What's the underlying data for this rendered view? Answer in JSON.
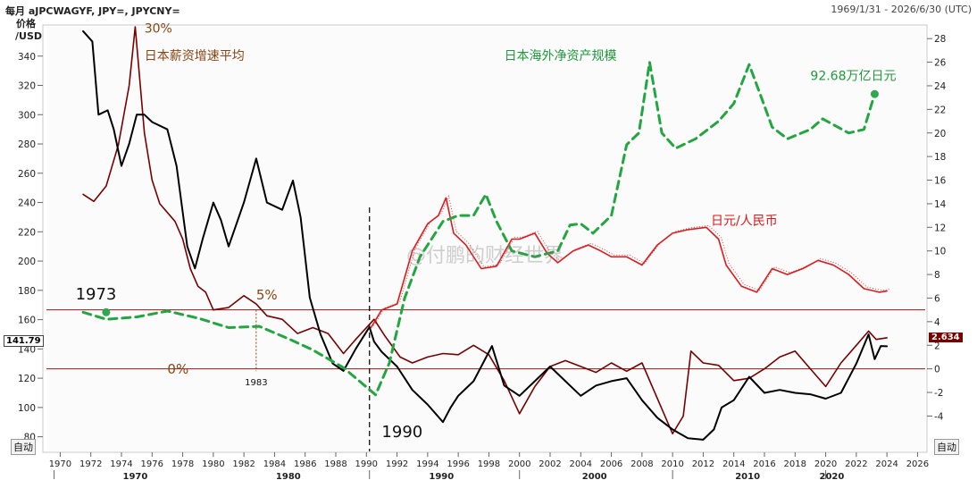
{
  "header": {
    "left": "每月 aJPCWAGYF, JPY=, JPYCNY=",
    "right": "1969/1/31 - 2026/6/30 (UTC)"
  },
  "left_axis": {
    "title_line1": "价格",
    "title_line2": "/USD"
  },
  "auto_left": "自动",
  "auto_right": "自动",
  "last_price_left": "141.79",
  "last_price_right": "2.634",
  "watermark": "@付鹏的财经世界",
  "colors": {
    "yen_usd": "#000000",
    "wage": "#7a0000",
    "nfa": "#22a63f",
    "yen_cny": "#e01a1a",
    "ref_line": "#8b1a1a",
    "anno_brown": "#8b4513"
  },
  "chart_data": {
    "type": "line",
    "x_range": [
      1969.1,
      2026.5
    ],
    "xticks": [
      1970,
      1972,
      1974,
      1976,
      1978,
      1980,
      1982,
      1984,
      1986,
      1988,
      1990,
      1992,
      1994,
      1996,
      1998,
      2000,
      2002,
      2004,
      2006,
      2008,
      2010,
      2012,
      2014,
      2016,
      2018,
      2020,
      2022,
      2024,
      2026
    ],
    "decades": [
      {
        "label": "1970",
        "x": 1974.9
      },
      {
        "label": "1980",
        "x": 1984.9
      },
      {
        "label": "1990",
        "x": 1994.9
      },
      {
        "label": "2000",
        "x": 2004.9
      },
      {
        "label": "2010",
        "x": 2014.9
      },
      {
        "label": "2020",
        "x": 2020.4
      }
    ],
    "y_left": {
      "range": [
        70,
        360
      ],
      "ticks": [
        80,
        100,
        120,
        140,
        160,
        180,
        200,
        220,
        240,
        260,
        280,
        300,
        320,
        340
      ]
    },
    "y_right": {
      "range": [
        -7,
        29
      ],
      "ticks": [
        -4,
        -2,
        0,
        2,
        4,
        6,
        8,
        10,
        12,
        14,
        16,
        18,
        20,
        22,
        24,
        26,
        28
      ]
    },
    "series": [
      {
        "name": "",
        "axis": "left",
        "style": "solid",
        "points": [
          [
            1971.5,
            357
          ],
          [
            1972.1,
            350
          ],
          [
            1972.5,
            300
          ],
          [
            1973.1,
            303
          ],
          [
            1973.5,
            290
          ],
          [
            1974.0,
            265
          ],
          [
            1974.5,
            280
          ],
          [
            1975.0,
            300
          ],
          [
            1975.5,
            300
          ],
          [
            1976.0,
            295
          ],
          [
            1977.0,
            290
          ],
          [
            1977.6,
            265
          ],
          [
            1978.3,
            210
          ],
          [
            1978.8,
            195
          ],
          [
            1979.3,
            215
          ],
          [
            1980.0,
            240
          ],
          [
            1980.5,
            228
          ],
          [
            1981.0,
            210
          ],
          [
            1982.0,
            240
          ],
          [
            1982.8,
            270
          ],
          [
            1983.5,
            240
          ],
          [
            1984.5,
            235
          ],
          [
            1985.2,
            255
          ],
          [
            1985.7,
            230
          ],
          [
            1986.3,
            175
          ],
          [
            1987.0,
            150
          ],
          [
            1987.8,
            130
          ],
          [
            1988.5,
            125
          ],
          [
            1989.3,
            140
          ],
          [
            1990.2,
            155
          ],
          [
            1990.5,
            145
          ],
          [
            1991.0,
            138
          ],
          [
            1992.0,
            128
          ],
          [
            1993.0,
            112
          ],
          [
            1994.0,
            102
          ],
          [
            1995.0,
            90
          ],
          [
            1995.5,
            100
          ],
          [
            1996.0,
            108
          ],
          [
            1997.0,
            118
          ],
          [
            1998.2,
            142
          ],
          [
            1999.0,
            115
          ],
          [
            2000.0,
            108
          ],
          [
            2001.2,
            120
          ],
          [
            2002.0,
            128
          ],
          [
            2003.0,
            118
          ],
          [
            2004.0,
            108
          ],
          [
            2005.0,
            115
          ],
          [
            2006.0,
            118
          ],
          [
            2007.0,
            120
          ],
          [
            2008.0,
            105
          ],
          [
            2009.0,
            93
          ],
          [
            2010.0,
            85
          ],
          [
            2011.0,
            79
          ],
          [
            2012.0,
            78
          ],
          [
            2012.7,
            85
          ],
          [
            2013.2,
            100
          ],
          [
            2014.0,
            105
          ],
          [
            2015.0,
            121
          ],
          [
            2016.0,
            110
          ],
          [
            2017.0,
            112
          ],
          [
            2018.0,
            110
          ],
          [
            2019.0,
            109
          ],
          [
            2020.0,
            106
          ],
          [
            2021.0,
            110
          ],
          [
            2022.0,
            130
          ],
          [
            2022.8,
            150
          ],
          [
            2023.2,
            133
          ],
          [
            2023.6,
            142
          ],
          [
            2024.0,
            141.8
          ]
        ]
      },
      {
        "name": "",
        "axis": "right",
        "style": "solid",
        "points": [
          [
            1971.5,
            14.8
          ],
          [
            1972.2,
            14.2
          ],
          [
            1973.0,
            15.5
          ],
          [
            1973.8,
            19
          ],
          [
            1974.5,
            24
          ],
          [
            1974.9,
            29
          ],
          [
            1975.5,
            20
          ],
          [
            1976.0,
            16
          ],
          [
            1976.5,
            14
          ],
          [
            1977.5,
            12.5
          ],
          [
            1978.0,
            11
          ],
          [
            1978.5,
            8.5
          ],
          [
            1979.0,
            7
          ],
          [
            1979.5,
            6.5
          ],
          [
            1980.0,
            5
          ],
          [
            1981.0,
            5.2
          ],
          [
            1982.0,
            6.2
          ],
          [
            1982.8,
            5.5
          ],
          [
            1983.5,
            4.5
          ],
          [
            1984.5,
            4.2
          ],
          [
            1985.5,
            3.0
          ],
          [
            1986.5,
            3.5
          ],
          [
            1987.5,
            3.0
          ],
          [
            1988.5,
            1.3
          ],
          [
            1989.3,
            2.5
          ],
          [
            1990.5,
            4.2
          ],
          [
            1991.2,
            2.8
          ],
          [
            1992.2,
            1.0
          ],
          [
            1993.0,
            0.5
          ],
          [
            1994.0,
            1.0
          ],
          [
            1995.0,
            1.3
          ],
          [
            1996.0,
            1.2
          ],
          [
            1997.0,
            2.0
          ],
          [
            1998.0,
            1.2
          ],
          [
            1999.0,
            -1.0
          ],
          [
            2000.0,
            -3.8
          ],
          [
            2001.0,
            -1.5
          ],
          [
            2002.0,
            0.2
          ],
          [
            2003.0,
            0.7
          ],
          [
            2004.0,
            0.2
          ],
          [
            2005.0,
            -0.3
          ],
          [
            2006.0,
            0.5
          ],
          [
            2007.0,
            -0.2
          ],
          [
            2008.0,
            0.5
          ],
          [
            2009.0,
            -2.5
          ],
          [
            2010.0,
            -5.5
          ],
          [
            2010.7,
            -4.0
          ],
          [
            2011.2,
            1.5
          ],
          [
            2012.0,
            0.5
          ],
          [
            2013.0,
            0.3
          ],
          [
            2014.0,
            -1.0
          ],
          [
            2015.0,
            -0.8
          ],
          [
            2016.0,
            0.0
          ],
          [
            2017.0,
            1.0
          ],
          [
            2018.0,
            1.5
          ],
          [
            2019.0,
            0.0
          ],
          [
            2020.0,
            -1.5
          ],
          [
            2021.0,
            0.5
          ],
          [
            2022.0,
            2.0
          ],
          [
            2022.8,
            3.2
          ],
          [
            2023.3,
            2.5
          ],
          [
            2024.0,
            2.634
          ]
        ]
      },
      {
        "name": "",
        "axis": "right",
        "style": "dashed",
        "points": [
          [
            1971.5,
            4.8
          ],
          [
            1973.0,
            4.2
          ],
          [
            1975.0,
            4.4
          ],
          [
            1977.0,
            4.9
          ],
          [
            1979.0,
            4.3
          ],
          [
            1981.0,
            3.5
          ],
          [
            1983.0,
            3.6
          ],
          [
            1985.0,
            2.5
          ],
          [
            1986.5,
            1.6
          ],
          [
            1988.5,
            0.1
          ],
          [
            1990.6,
            -2.2
          ],
          [
            1991.5,
            0.5
          ],
          [
            1992.5,
            6.0
          ],
          [
            1993.5,
            9.5
          ],
          [
            1995.0,
            12.5
          ],
          [
            1996.0,
            13.0
          ],
          [
            1997.0,
            13.0
          ],
          [
            1997.8,
            14.8
          ],
          [
            1998.5,
            12.5
          ],
          [
            1999.5,
            10.0
          ],
          [
            2001.0,
            9.5
          ],
          [
            2002.5,
            10.0
          ],
          [
            2003.3,
            12.2
          ],
          [
            2004.0,
            12.3
          ],
          [
            2004.8,
            11.5
          ],
          [
            2006.0,
            13.0
          ],
          [
            2007.0,
            19.0
          ],
          [
            2007.8,
            20.0
          ],
          [
            2008.5,
            26.0
          ],
          [
            2009.3,
            20.0
          ],
          [
            2010.2,
            18.7
          ],
          [
            2011.5,
            19.5
          ],
          [
            2013.0,
            21.0
          ],
          [
            2014.0,
            22.5
          ],
          [
            2015.0,
            25.8
          ],
          [
            2015.8,
            23.0
          ],
          [
            2016.5,
            20.5
          ],
          [
            2017.5,
            19.5
          ],
          [
            2019.0,
            20.3
          ],
          [
            2019.8,
            21.2
          ],
          [
            2021.5,
            20.0
          ],
          [
            2022.5,
            20.3
          ],
          [
            2023.2,
            23.3
          ]
        ]
      },
      {
        "name": "",
        "axis": "right",
        "style": "solid",
        "points": [
          [
            1990.3,
            3.5
          ],
          [
            1991.0,
            5.0
          ],
          [
            1992.0,
            5.5
          ],
          [
            1993.0,
            10.0
          ],
          [
            1994.0,
            12.3
          ],
          [
            1994.7,
            13.0
          ],
          [
            1995.2,
            14.5
          ],
          [
            1995.7,
            11.5
          ],
          [
            1996.5,
            10.5
          ],
          [
            1997.5,
            8.5
          ],
          [
            1998.5,
            8.7
          ],
          [
            1999.5,
            11.0
          ],
          [
            2000.0,
            11.0
          ],
          [
            2001.0,
            11.5
          ],
          [
            2001.8,
            9.8
          ],
          [
            2002.5,
            9.0
          ],
          [
            2003.5,
            10.0
          ],
          [
            2004.5,
            10.5
          ],
          [
            2005.3,
            10.0
          ],
          [
            2006.0,
            9.5
          ],
          [
            2007.0,
            9.5
          ],
          [
            2008.0,
            8.8
          ],
          [
            2009.0,
            10.5
          ],
          [
            2010.0,
            11.5
          ],
          [
            2011.0,
            11.8
          ],
          [
            2012.2,
            12.0
          ],
          [
            2013.0,
            11.0
          ],
          [
            2013.5,
            8.8
          ],
          [
            2014.5,
            7.0
          ],
          [
            2015.5,
            6.5
          ],
          [
            2016.5,
            8.5
          ],
          [
            2017.5,
            8.0
          ],
          [
            2018.5,
            8.5
          ],
          [
            2019.5,
            9.2
          ],
          [
            2020.5,
            8.8
          ],
          [
            2021.5,
            8.0
          ],
          [
            2022.5,
            6.8
          ],
          [
            2023.5,
            6.5
          ],
          [
            2024.0,
            6.6
          ]
        ]
      }
    ],
    "reference_lines": [
      {
        "axis": "right",
        "y": 5.0
      },
      {
        "axis": "right",
        "y": 0.0
      }
    ],
    "marker_points": [
      {
        "axis": "right",
        "x": 1973.0,
        "y": 4.8
      },
      {
        "axis": "right",
        "x": 2023.2,
        "y": 23.3
      }
    ],
    "event_lines": [
      {
        "x": 1990.2,
        "style": "dashed"
      },
      {
        "x": 1982.8,
        "style": "dotted"
      }
    ],
    "annotations": [
      {
        "text": "30%",
        "x": 1975.5,
        "y_right": 28.5,
        "color": "brown",
        "size": 14
      },
      {
        "text": "日本薪资增速平均",
        "x": 1975.5,
        "y_right": 26.2,
        "color": "brown",
        "size": 14
      },
      {
        "text": "日本海外净资产规模",
        "x": 1999.0,
        "y_right": 26.2,
        "color": "green",
        "size": 14
      },
      {
        "text": "92.68万亿日元",
        "x": 2019.0,
        "y_right": 24.5,
        "color": "green",
        "size": 14
      },
      {
        "text": "日元/人民币",
        "x": 2012.5,
        "y_right": 12.2,
        "color": "red",
        "size": 14
      },
      {
        "text": "1973",
        "x": 1971.0,
        "y_right": 5.9,
        "color": "black",
        "size": 18
      },
      {
        "text": "5%",
        "x": 1982.8,
        "y_right": 5.9,
        "color": "brown",
        "size": 15
      },
      {
        "text": "0%",
        "x": 1977.0,
        "y_right": -0.4,
        "color": "brown",
        "size": 15
      },
      {
        "text": "1983",
        "x": 1982.8,
        "y_right": -1.4,
        "color": "black",
        "size": 10
      },
      {
        "text": "1990",
        "x": 1991.0,
        "y_right": -5.8,
        "color": "black",
        "size": 18
      }
    ]
  }
}
